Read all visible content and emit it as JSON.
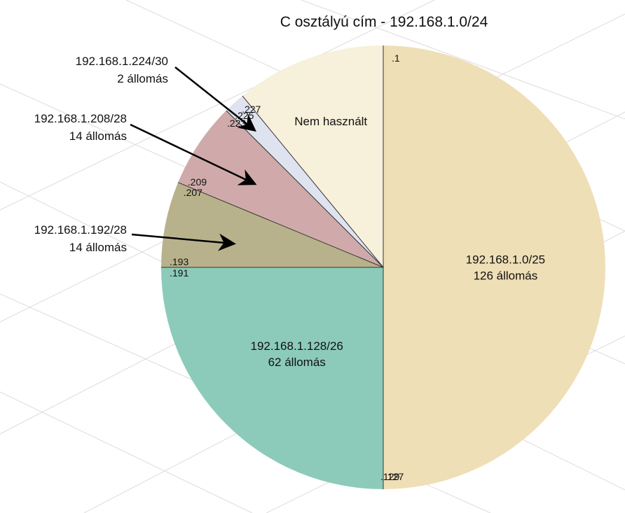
{
  "chart_data": {
    "type": "pie",
    "title": "C osztályú cím - 192.168.1.0/24",
    "start": "top",
    "direction": "clockwise",
    "total": 256,
    "slices": [
      {
        "label_lines": [
          "192.168.1.0/25",
          "126 állomás"
        ],
        "value": 128,
        "color": "#efdfb6",
        "first_addr": ".1",
        "last_addr": ".127"
      },
      {
        "label_lines": [
          "192.168.1.128/26",
          "62 állomás"
        ],
        "value": 64,
        "color": "#8ccbb9",
        "first_addr": ".129",
        "last_addr": ".191"
      },
      {
        "label_lines": [],
        "value": 16,
        "color": "#b8b28c",
        "first_addr": ".193",
        "last_addr": ".207"
      },
      {
        "label_lines": [],
        "value": 16,
        "color": "#d0aaaa",
        "first_addr": ".209",
        "last_addr": ".223"
      },
      {
        "label_lines": [],
        "value": 4,
        "color": "#dfe3f0",
        "first_addr": ".225",
        "last_addr": ".227"
      },
      {
        "label_lines": [
          "Nem használt"
        ],
        "value": 28,
        "color": "#f7f0da",
        "first_addr": "",
        "last_addr": ""
      }
    ],
    "annotations": [
      {
        "lines": [
          "192.168.1.224/30",
          "2 állomás"
        ],
        "slice": 4
      },
      {
        "lines": [
          "192.168.1.208/28",
          "14 állomás"
        ],
        "slice": 3
      },
      {
        "lines": [
          "192.168.1.192/28",
          "14 állomás"
        ],
        "slice": 2
      }
    ]
  }
}
